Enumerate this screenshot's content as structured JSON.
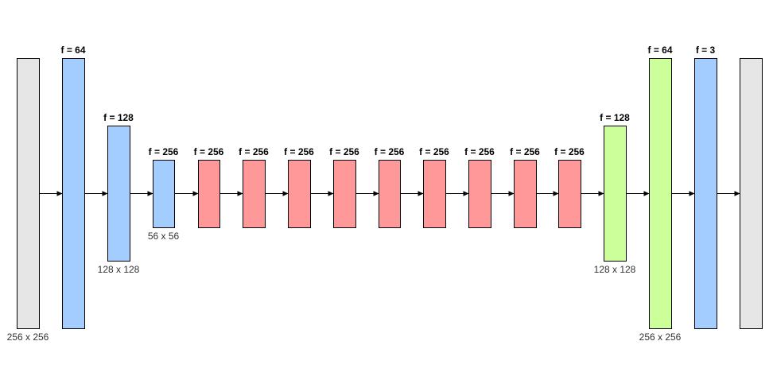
{
  "colors": {
    "input_output": "#e6e6e6",
    "encoder": "#a3ccff",
    "residual": "#ff9999",
    "decoder": "#ccff99",
    "stroke": "#000000"
  },
  "blocks": [
    {
      "kind": "input_output",
      "filter_label": "",
      "size_label": "256 x 256"
    },
    {
      "kind": "encoder",
      "filter_label": "f = 64",
      "size_label": ""
    },
    {
      "kind": "encoder",
      "filter_label": "f = 128",
      "size_label": "128 x 128"
    },
    {
      "kind": "encoder",
      "filter_label": "f = 256",
      "size_label": "56 x 56"
    },
    {
      "kind": "residual",
      "filter_label": "f = 256",
      "size_label": ""
    },
    {
      "kind": "residual",
      "filter_label": "f = 256",
      "size_label": ""
    },
    {
      "kind": "residual",
      "filter_label": "f = 256",
      "size_label": ""
    },
    {
      "kind": "residual",
      "filter_label": "f = 256",
      "size_label": ""
    },
    {
      "kind": "residual",
      "filter_label": "f = 256",
      "size_label": ""
    },
    {
      "kind": "residual",
      "filter_label": "f = 256",
      "size_label": ""
    },
    {
      "kind": "residual",
      "filter_label": "f = 256",
      "size_label": ""
    },
    {
      "kind": "residual",
      "filter_label": "f = 256",
      "size_label": ""
    },
    {
      "kind": "residual",
      "filter_label": "f = 256",
      "size_label": ""
    },
    {
      "kind": "decoder",
      "filter_label": "f = 128",
      "size_label": "128 x 128"
    },
    {
      "kind": "decoder",
      "filter_label": "f = 64",
      "size_label": "256 x 256"
    },
    {
      "kind": "encoder",
      "filter_label": "f = 3",
      "size_label": ""
    },
    {
      "kind": "input_output",
      "filter_label": "",
      "size_label": ""
    }
  ]
}
